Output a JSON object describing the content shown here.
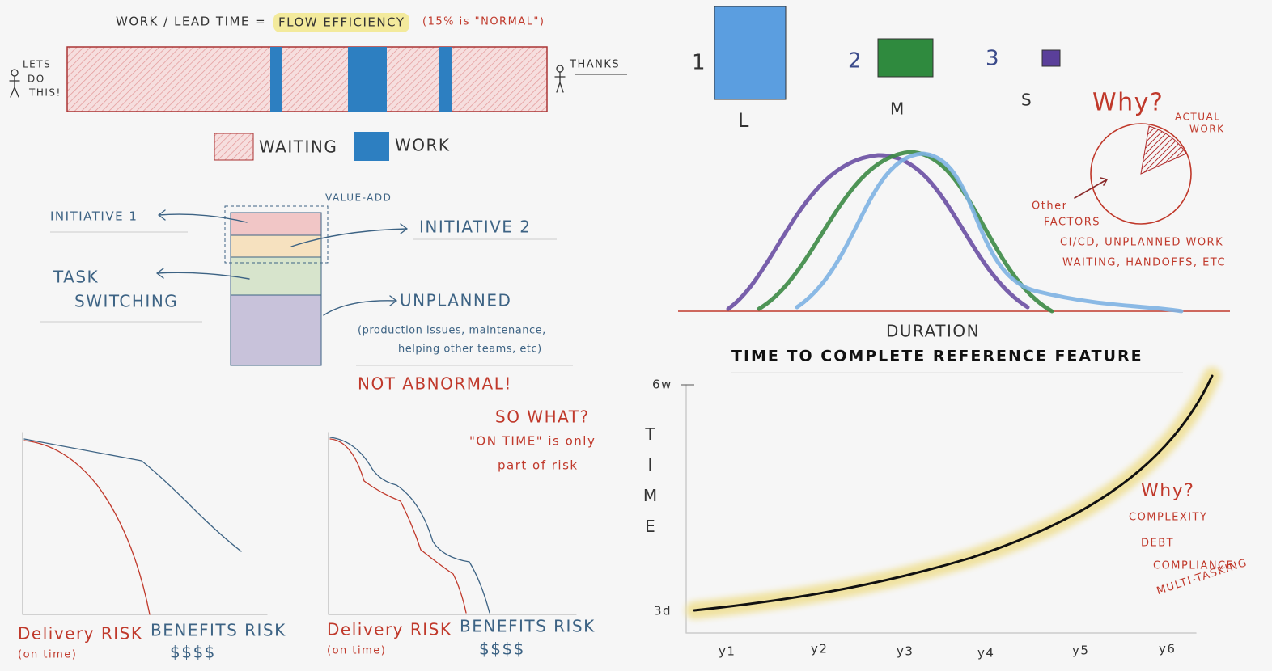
{
  "flow_efficiency": {
    "formula": "WORK / LEAD TIME =",
    "highlight": "FLOW EFFICIENCY",
    "note": "(15% is \"NORMAL\")",
    "start": [
      "LETS",
      "DO",
      "THIS!"
    ],
    "end": "THANKS",
    "legend": [
      "WAITING",
      "WORK"
    ]
  },
  "value_add": {
    "label": "VALUE-ADD",
    "initiative_1": "INITIATIVE 1",
    "initiative_2": "INITIATIVE 2",
    "task_switching": [
      "TASK",
      "SWITCHING"
    ],
    "unplanned": "UNPLANNED",
    "unplanned_note": [
      "(production issues, maintenance,",
      "helping other teams, etc)"
    ],
    "remark": "NOT ABNORMAL!"
  },
  "risk": {
    "question": [
      "SO WHAT?",
      "\"ON TIME\" is only",
      "part of risk"
    ],
    "charts": [
      {
        "delivery": "Delivery RISK",
        "delivery_note": "(on time)",
        "benefits": "BENEFITS RISK",
        "benefits_note": "$$$$"
      },
      {
        "delivery": "Delivery RISK",
        "delivery_note": "(on time)",
        "benefits": "BENEFITS RISK",
        "benefits_note": "$$$$"
      }
    ]
  },
  "sizes": {
    "items": [
      {
        "rank": "1",
        "size": "L"
      },
      {
        "rank": "2",
        "size": "M"
      },
      {
        "rank": "3",
        "size": "S"
      }
    ]
  },
  "why_pie": {
    "title": "Why?",
    "actual": [
      "ACTUAL",
      "WORK"
    ],
    "other": [
      "Other",
      "FACTORS"
    ],
    "factors": [
      "CI/CD, UNPLANNED WORK",
      "WAITING, HANDOFFS, ETC"
    ]
  },
  "distribution": {
    "x_label": "DURATION",
    "title": "TIME TO COMPLETE REFERENCE FEATURE"
  },
  "time_chart": {
    "y_top": "6w",
    "y_bottom": "3d",
    "y_label": "TIME",
    "x_labels": [
      "y1",
      "y2",
      "y3",
      "y4",
      "y5",
      "y6"
    ],
    "why": "Why?",
    "reasons": [
      "COMPLEXITY",
      "DEBT",
      "COMPLIANCE",
      "MULTI-TASKING"
    ]
  }
}
